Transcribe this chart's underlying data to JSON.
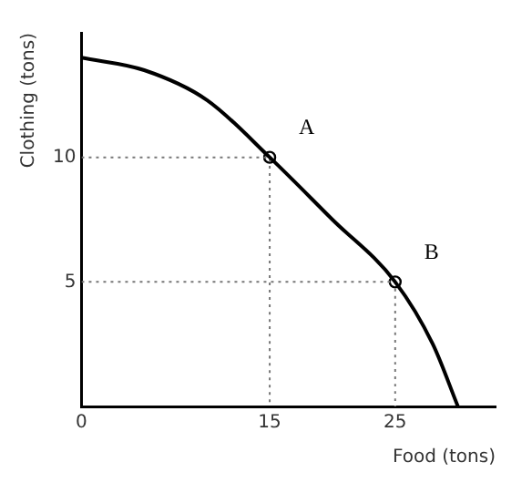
{
  "chart_data": {
    "type": "line",
    "xlabel": "Food (tons)",
    "ylabel": "Clothing (tons)",
    "xlim": [
      0,
      33
    ],
    "ylim": [
      0,
      15
    ],
    "xticks": [
      0,
      15,
      25
    ],
    "yticks": [
      5,
      10
    ],
    "grid": false,
    "legend": false,
    "series": [
      {
        "color": "#000000",
        "x": [
          0,
          5,
          10,
          15,
          20,
          25,
          28,
          30
        ],
        "values": [
          14,
          13.5,
          12.3,
          10,
          7.5,
          5,
          2.5,
          0
        ],
        "marker": "none",
        "line_style": "solid"
      },
      {
        "color": "#777777",
        "x": [
          0,
          15,
          15
        ],
        "values": [
          10,
          10,
          0
        ],
        "marker": "none",
        "line_style": "dotted"
      },
      {
        "color": "#777777",
        "x": [
          0,
          25,
          25
        ],
        "values": [
          5,
          5,
          0
        ],
        "marker": "none",
        "line_style": "dotted"
      },
      {
        "type": "scatter",
        "color": "#000000",
        "x": [
          15,
          25
        ],
        "values": [
          10,
          5
        ],
        "marker": "circle"
      }
    ],
    "annotations": [
      {
        "text": "A",
        "x": 15,
        "y": 10
      },
      {
        "text": "B",
        "x": 25,
        "y": 5
      }
    ]
  }
}
